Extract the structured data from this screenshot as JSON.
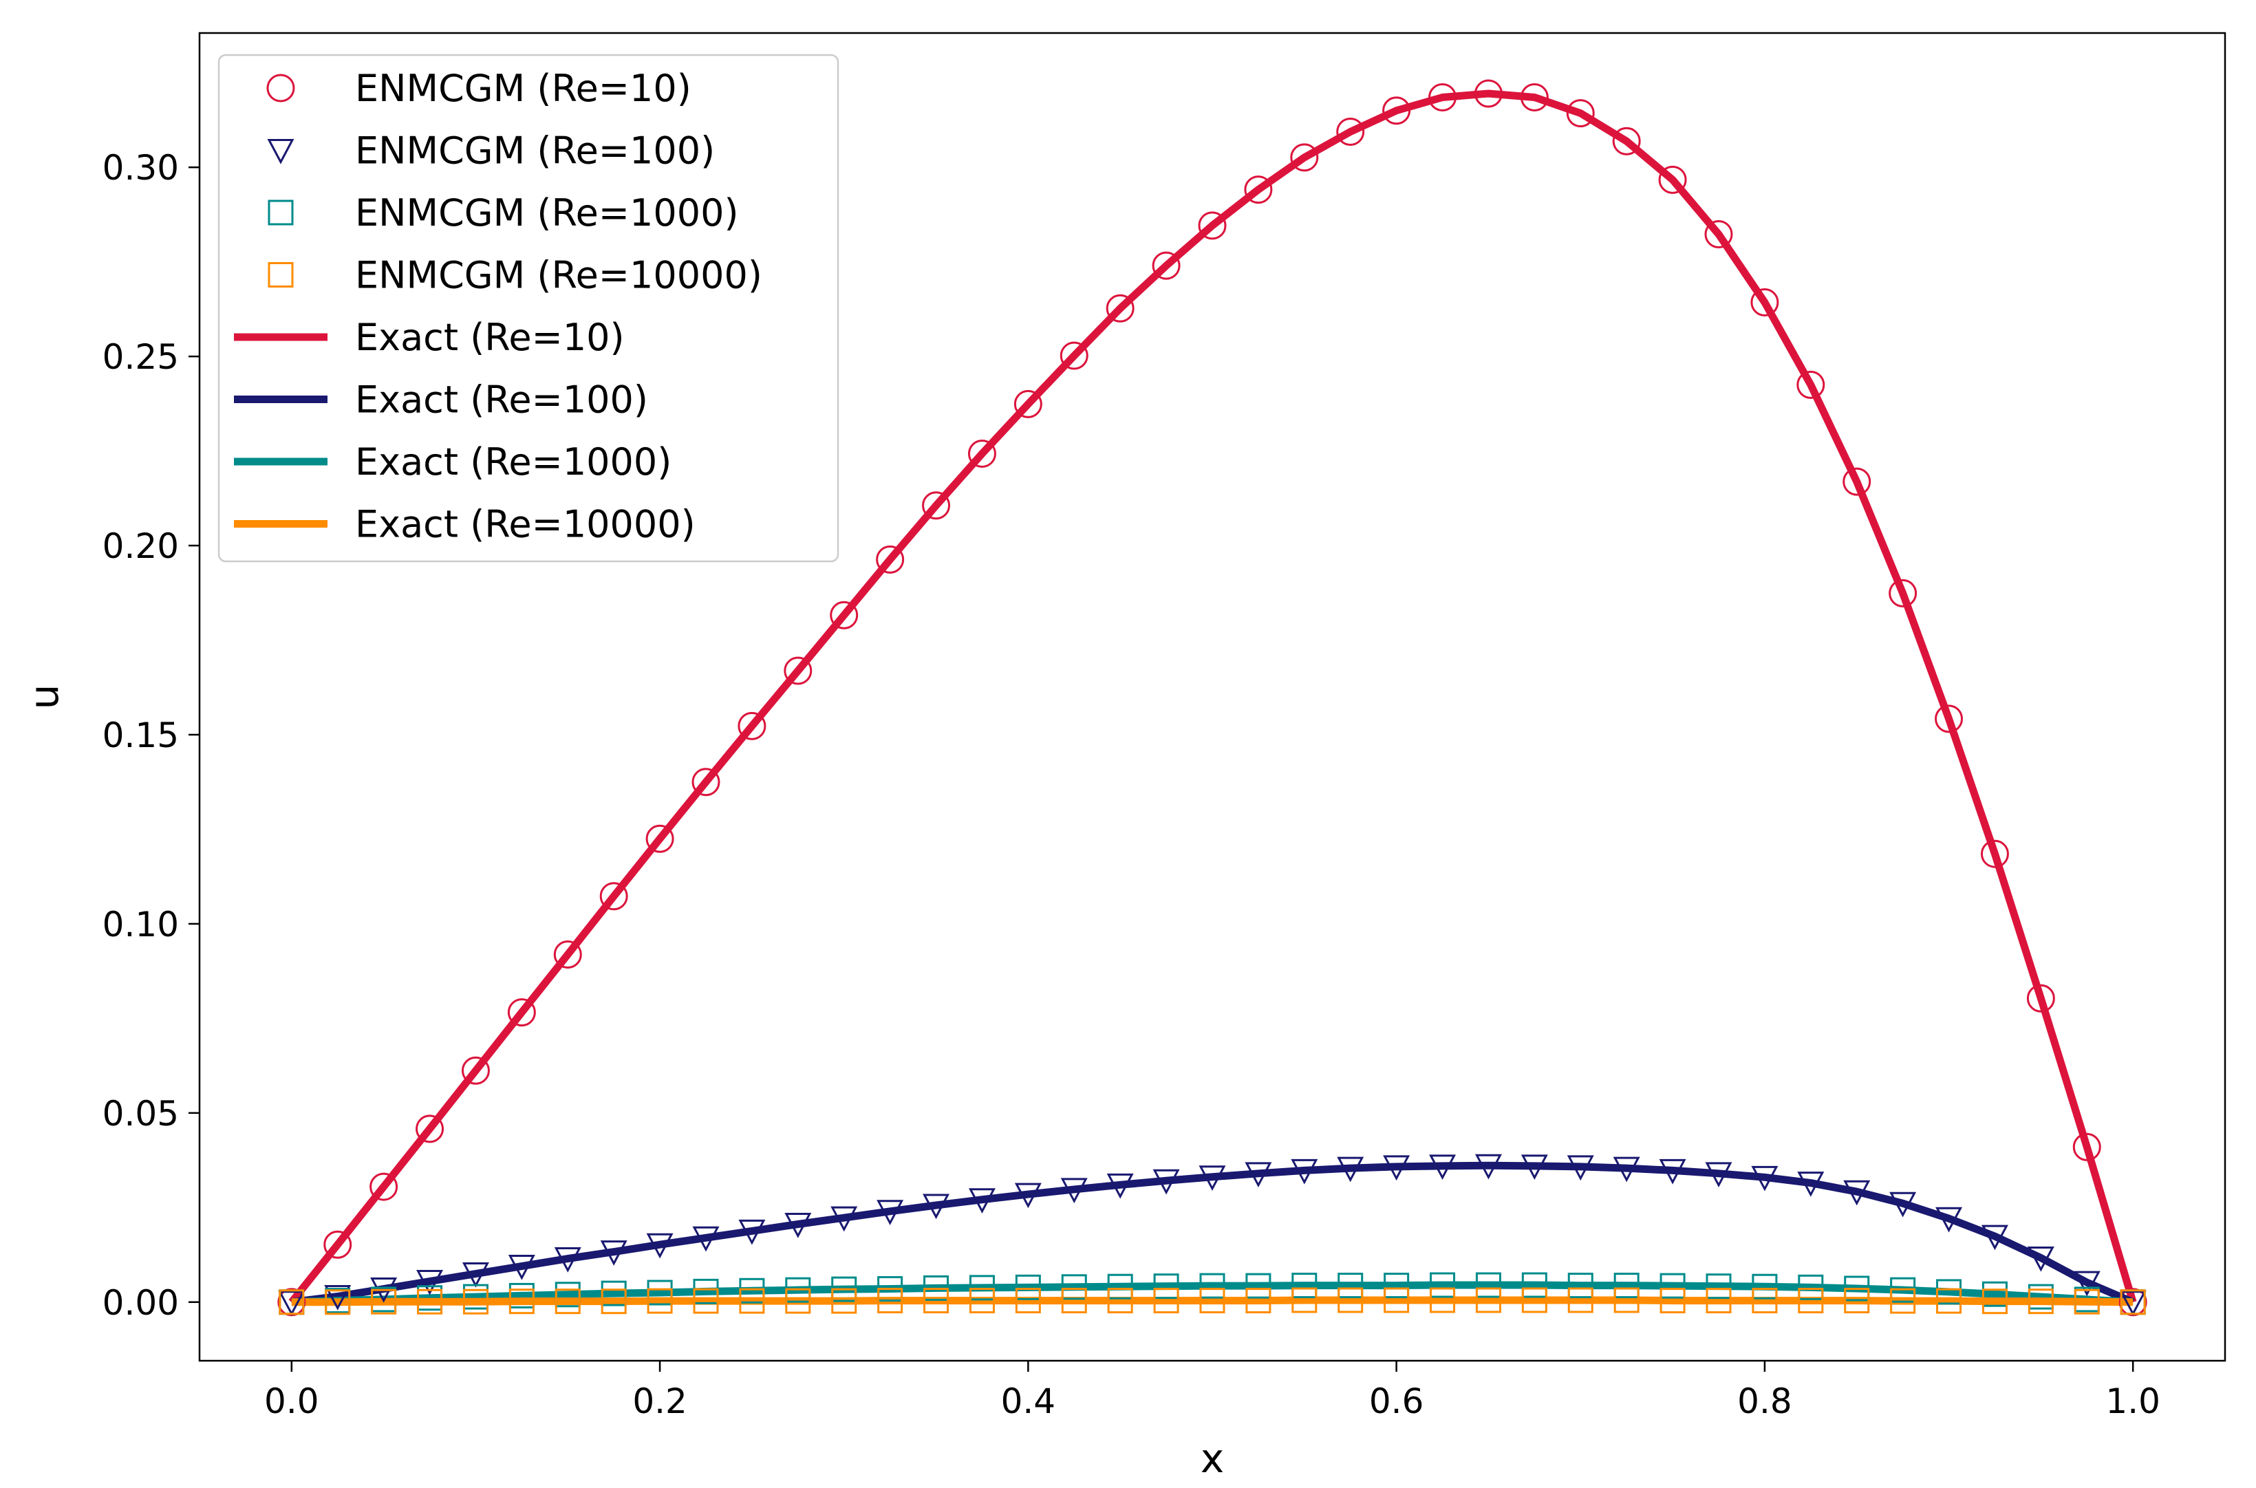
{
  "chart_data": {
    "type": "line",
    "title": "",
    "xlabel": "x",
    "ylabel": "u",
    "xlim": [
      -0.05,
      1.05
    ],
    "ylim": [
      -0.0155,
      0.3355
    ],
    "grid": false,
    "legend_position": "top-left",
    "x_ticks": [
      0.0,
      0.2,
      0.4,
      0.6,
      0.8,
      1.0
    ],
    "x_tick_labels": [
      "0.0",
      "0.2",
      "0.4",
      "0.6",
      "0.8",
      "1.0"
    ],
    "y_ticks": [
      0.0,
      0.05,
      0.1,
      0.15,
      0.2,
      0.25,
      0.3
    ],
    "y_tick_labels": [
      "0.00",
      "0.05",
      "0.10",
      "0.15",
      "0.20",
      "0.25",
      "0.30"
    ],
    "marker_x": [
      0.0,
      0.025,
      0.05,
      0.075,
      0.1,
      0.125,
      0.15,
      0.175,
      0.2,
      0.225,
      0.25,
      0.275,
      0.3,
      0.325,
      0.35,
      0.375,
      0.4,
      0.425,
      0.45,
      0.475,
      0.5,
      0.525,
      0.55,
      0.575,
      0.6,
      0.625,
      0.65,
      0.675,
      0.7,
      0.725,
      0.75,
      0.775,
      0.8,
      0.825,
      0.85,
      0.875,
      0.9,
      0.925,
      0.95,
      0.975,
      1.0
    ],
    "series": [
      {
        "name": "ENMCGM (Re=10)",
        "kind": "markers",
        "marker": "circle",
        "color": "#DC143C",
        "values": [
          0.0,
          0.0152,
          0.0305,
          0.0458,
          0.0612,
          0.0766,
          0.0919,
          0.1073,
          0.1225,
          0.1375,
          0.1523,
          0.1669,
          0.1816,
          0.1963,
          0.2106,
          0.2243,
          0.2374,
          0.2502,
          0.2627,
          0.274,
          0.2846,
          0.2941,
          0.3026,
          0.3094,
          0.315,
          0.3185,
          0.3195,
          0.3185,
          0.3143,
          0.3069,
          0.2967,
          0.2823,
          0.2643,
          0.2425,
          0.2169,
          0.1874,
          0.1542,
          0.1185,
          0.0803,
          0.041,
          0.0
        ]
      },
      {
        "name": "ENMCGM (Re=100)",
        "kind": "markers",
        "marker": "triangle-down",
        "color": "#191970",
        "values": [
          0.0,
          0.0015,
          0.0035,
          0.0055,
          0.0075,
          0.0095,
          0.0115,
          0.0133,
          0.0152,
          0.017,
          0.0188,
          0.0206,
          0.0223,
          0.024,
          0.0256,
          0.0271,
          0.0285,
          0.0298,
          0.031,
          0.0321,
          0.0331,
          0.034,
          0.0348,
          0.0354,
          0.0358,
          0.036,
          0.0361,
          0.036,
          0.0358,
          0.0354,
          0.0348,
          0.034,
          0.033,
          0.0315,
          0.0292,
          0.0261,
          0.0221,
          0.0174,
          0.0117,
          0.0052,
          0.0
        ]
      },
      {
        "name": "ENMCGM (Re=1000)",
        "kind": "markers",
        "marker": "square",
        "color": "#008B8B",
        "values": [
          0.0,
          0.0004,
          0.0007,
          0.0011,
          0.0014,
          0.0017,
          0.002,
          0.0023,
          0.0025,
          0.0028,
          0.003,
          0.0032,
          0.0034,
          0.0035,
          0.0037,
          0.0038,
          0.0039,
          0.004,
          0.0041,
          0.0042,
          0.0043,
          0.0043,
          0.0044,
          0.0044,
          0.0044,
          0.0045,
          0.0045,
          0.0045,
          0.0044,
          0.0044,
          0.0043,
          0.0042,
          0.0041,
          0.0039,
          0.0036,
          0.0032,
          0.0027,
          0.0021,
          0.0014,
          0.0007,
          0.0
        ]
      },
      {
        "name": "ENMCGM (Re=10000)",
        "kind": "markers",
        "marker": "square",
        "color": "#FF8C00",
        "values": [
          0.0,
          0.0,
          0.0001,
          0.0001,
          0.0001,
          0.0002,
          0.0002,
          0.0002,
          0.0003,
          0.0003,
          0.0003,
          0.0003,
          0.0003,
          0.0004,
          0.0004,
          0.0004,
          0.0004,
          0.0004,
          0.0004,
          0.0004,
          0.0004,
          0.0004,
          0.0005,
          0.0005,
          0.0005,
          0.0005,
          0.0005,
          0.0005,
          0.0005,
          0.0005,
          0.0004,
          0.0004,
          0.0004,
          0.0004,
          0.0004,
          0.0003,
          0.0003,
          0.0002,
          0.0002,
          0.0001,
          0.0
        ]
      },
      {
        "name": "Exact (Re=10)",
        "kind": "line",
        "color": "#DC143C",
        "values": [
          0.0,
          0.0152,
          0.0305,
          0.0458,
          0.0612,
          0.0766,
          0.0919,
          0.1073,
          0.1225,
          0.1375,
          0.1523,
          0.1669,
          0.1816,
          0.1963,
          0.2106,
          0.2243,
          0.2374,
          0.2502,
          0.2627,
          0.274,
          0.2846,
          0.2941,
          0.3026,
          0.3094,
          0.315,
          0.3185,
          0.3195,
          0.3185,
          0.3143,
          0.3069,
          0.2967,
          0.2823,
          0.2643,
          0.2425,
          0.2169,
          0.1874,
          0.1542,
          0.1185,
          0.0803,
          0.041,
          0.0
        ]
      },
      {
        "name": "Exact (Re=100)",
        "kind": "line",
        "color": "#191970",
        "values": [
          0.0,
          0.0015,
          0.0035,
          0.0055,
          0.0075,
          0.0095,
          0.0115,
          0.0133,
          0.0152,
          0.017,
          0.0188,
          0.0206,
          0.0223,
          0.024,
          0.0256,
          0.0271,
          0.0285,
          0.0298,
          0.031,
          0.0321,
          0.0331,
          0.034,
          0.0348,
          0.0354,
          0.0358,
          0.036,
          0.0361,
          0.036,
          0.0358,
          0.0354,
          0.0348,
          0.034,
          0.033,
          0.0315,
          0.0292,
          0.0261,
          0.0221,
          0.0174,
          0.0117,
          0.0052,
          0.0
        ]
      },
      {
        "name": "Exact (Re=1000)",
        "kind": "line",
        "color": "#008B8B",
        "values": [
          0.0,
          0.0004,
          0.0007,
          0.0011,
          0.0014,
          0.0017,
          0.002,
          0.0023,
          0.0025,
          0.0028,
          0.003,
          0.0032,
          0.0034,
          0.0035,
          0.0037,
          0.0038,
          0.0039,
          0.004,
          0.0041,
          0.0042,
          0.0043,
          0.0043,
          0.0044,
          0.0044,
          0.0044,
          0.0045,
          0.0045,
          0.0045,
          0.0044,
          0.0044,
          0.0043,
          0.0042,
          0.0041,
          0.0039,
          0.0036,
          0.0032,
          0.0027,
          0.0021,
          0.0014,
          0.0007,
          0.0
        ]
      },
      {
        "name": "Exact (Re=10000)",
        "kind": "line",
        "color": "#FF8C00",
        "values": [
          0.0,
          0.0,
          0.0001,
          0.0001,
          0.0001,
          0.0002,
          0.0002,
          0.0002,
          0.0003,
          0.0003,
          0.0003,
          0.0003,
          0.0003,
          0.0004,
          0.0004,
          0.0004,
          0.0004,
          0.0004,
          0.0004,
          0.0004,
          0.0004,
          0.0004,
          0.0005,
          0.0005,
          0.0005,
          0.0005,
          0.0005,
          0.0005,
          0.0005,
          0.0005,
          0.0004,
          0.0004,
          0.0004,
          0.0004,
          0.0004,
          0.0003,
          0.0003,
          0.0002,
          0.0002,
          0.0001,
          0.0
        ]
      }
    ]
  }
}
